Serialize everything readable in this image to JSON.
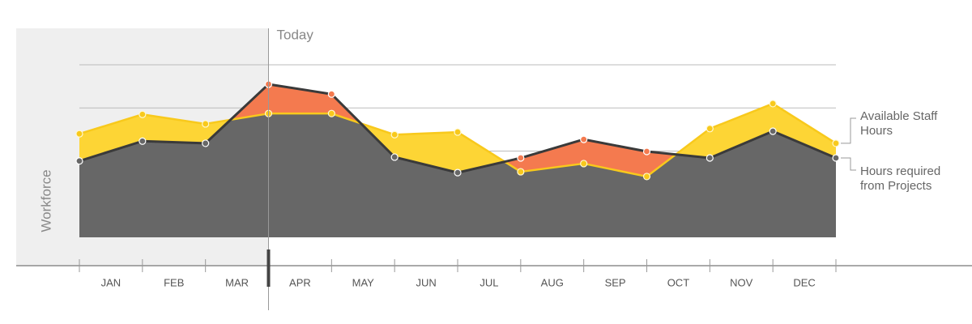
{
  "chart_data": {
    "type": "area",
    "y_label": "Workforce",
    "categories": [
      "JAN",
      "FEB",
      "MAR",
      "APR",
      "MAY",
      "JUN",
      "JUL",
      "AUG",
      "SEP",
      "OCT",
      "NOV",
      "DEC"
    ],
    "x": [
      0,
      1,
      2,
      3,
      4,
      5,
      6,
      7,
      8,
      9,
      10,
      11,
      12
    ],
    "xlim": [
      0,
      12
    ],
    "ylim": [
      0,
      4
    ],
    "yticks": [
      1,
      2,
      3,
      4
    ],
    "grid": true,
    "today": {
      "label": "Today",
      "x": 3
    },
    "deficit_color": "#f47a4f",
    "series": [
      {
        "name": "Available Staff Hours",
        "color": "#f8c91c",
        "fill": "#fdd535",
        "values": [
          2.4,
          2.85,
          2.63,
          2.87,
          2.87,
          2.38,
          2.44,
          1.52,
          1.71,
          1.41,
          2.52,
          3.1,
          2.18
        ]
      },
      {
        "name": "Hours required from Projects",
        "color": "#3a3a3a",
        "fill": "#676767",
        "values": [
          1.77,
          2.23,
          2.18,
          3.55,
          3.32,
          1.86,
          1.5,
          1.84,
          2.27,
          1.99,
          1.84,
          2.46,
          1.84
        ]
      }
    ]
  }
}
